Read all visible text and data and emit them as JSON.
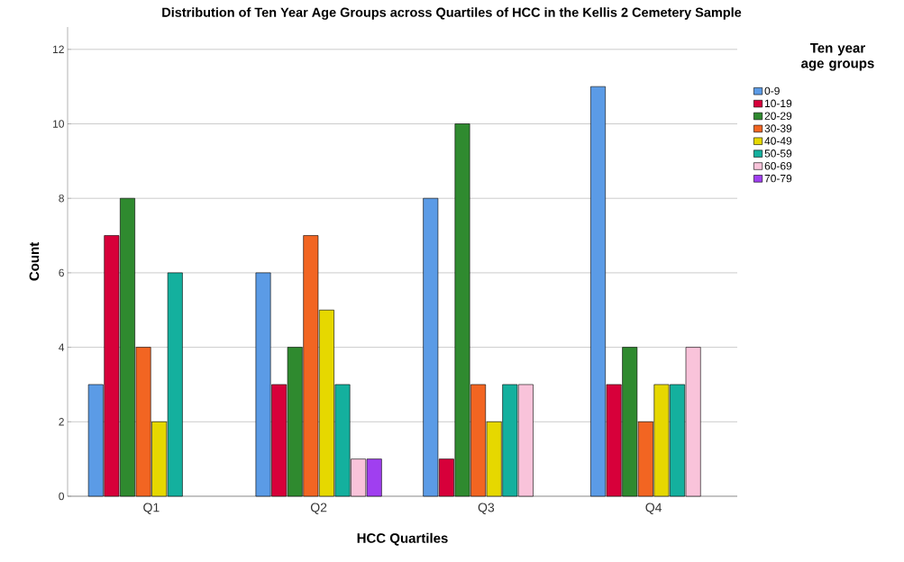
{
  "chart_data": {
    "type": "bar",
    "title": "Distribution of Ten Year Age Groups across Quartiles of HCC in the Kellis 2 Cemetery Sample",
    "xlabel": "HCC Quartiles",
    "ylabel": "Count",
    "legend_title": "Ten year age groups",
    "categories": [
      "Q1",
      "Q2",
      "Q3",
      "Q4"
    ],
    "series": [
      {
        "name": "0-9",
        "color": "#5b9be6",
        "values": [
          3,
          6,
          8,
          11
        ]
      },
      {
        "name": "10-19",
        "color": "#d7003a",
        "values": [
          7,
          3,
          1,
          3
        ]
      },
      {
        "name": "20-29",
        "color": "#2f8a2f",
        "values": [
          8,
          4,
          10,
          4
        ]
      },
      {
        "name": "30-39",
        "color": "#f26522",
        "values": [
          4,
          7,
          3,
          2
        ]
      },
      {
        "name": "40-49",
        "color": "#e6d800",
        "values": [
          2,
          5,
          2,
          3
        ]
      },
      {
        "name": "50-59",
        "color": "#14b09e",
        "values": [
          6,
          3,
          3,
          3
        ]
      },
      {
        "name": "60-69",
        "color": "#f9c3da",
        "values": [
          null,
          1,
          3,
          4
        ]
      },
      {
        "name": "70-79",
        "color": "#a03ff0",
        "values": [
          null,
          1,
          null,
          null
        ]
      }
    ],
    "ylim": [
      0,
      12.6
    ],
    "yticks": [
      0,
      2,
      4,
      6,
      8,
      10,
      12
    ],
    "grid": "y",
    "legend": "right"
  }
}
